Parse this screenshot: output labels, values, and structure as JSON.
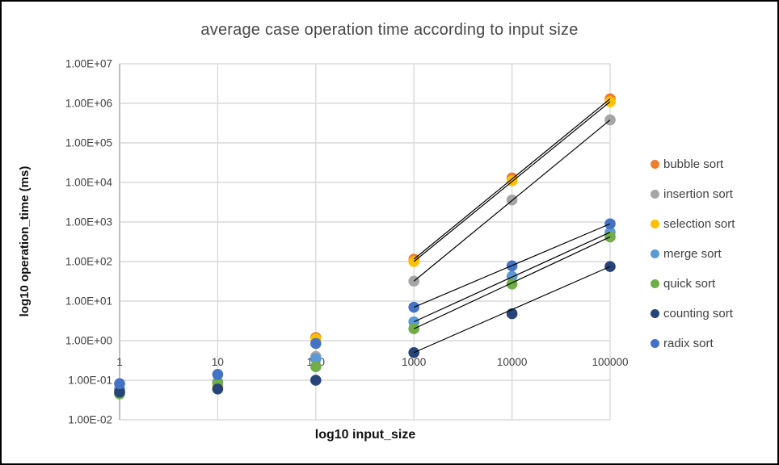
{
  "chart_data": {
    "type": "scatter",
    "title": "average case operation time according to input size",
    "xlabel": "log10 input_size",
    "ylabel": "log10 operation_time (ms)",
    "x_scale": "log10",
    "y_scale": "log10",
    "xlim": [
      1,
      100000
    ],
    "ylim": [
      0.01,
      10000000
    ],
    "grid": true,
    "legend_position": "right",
    "x": [
      1,
      10,
      100,
      1000,
      10000,
      100000
    ],
    "x_tick_labels": [
      "1",
      "10",
      "100",
      "1000",
      "10000",
      "100000"
    ],
    "y_tick_labels": [
      "1.00E+07",
      "1.00E+06",
      "1.00E+05",
      "1.00E+04",
      "1.00E+03",
      "1.00E+02",
      "1.00E+01",
      "1.00E+00",
      "1.00E-01",
      "1.00E-02"
    ],
    "series": [
      {
        "name": "bubble sort",
        "color": "#ED7D31",
        "values": [
          0.06,
          0.07,
          1.2,
          115,
          13000,
          1300000
        ],
        "trendline": true
      },
      {
        "name": "insertion sort",
        "color": "#A5A5A5",
        "values": [
          0.05,
          0.065,
          0.4,
          32,
          3600,
          380000
        ],
        "trendline": true
      },
      {
        "name": "selection sort",
        "color": "#FFC000",
        "values": [
          0.055,
          0.07,
          1.1,
          100,
          11000,
          1100000
        ],
        "trendline": true
      },
      {
        "name": "merge sort",
        "color": "#5B9BD5",
        "values": [
          0.06,
          0.09,
          0.35,
          3,
          42,
          550
        ],
        "trendline": true
      },
      {
        "name": "quick sort",
        "color": "#70AD47",
        "values": [
          0.045,
          0.085,
          0.22,
          2,
          27,
          420
        ],
        "trendline": true
      },
      {
        "name": "counting sort",
        "color": "#264478",
        "values": [
          0.05,
          0.06,
          0.1,
          0.5,
          4.8,
          75
        ],
        "trendline": true
      },
      {
        "name": "radix sort",
        "color": "#4472C4",
        "values": [
          0.082,
          0.14,
          0.85,
          7,
          78,
          900
        ],
        "trendline": true
      }
    ],
    "trendline_span_x": [
      1000,
      100000
    ],
    "trendline_color": "#000000",
    "style_colors": {
      "gridline": "#D9D9D9",
      "axis_line": "#BFBFBF",
      "tick_text": "#404040",
      "title_text": "#484848",
      "background": "#FFFFFF",
      "border": "#000000"
    }
  }
}
